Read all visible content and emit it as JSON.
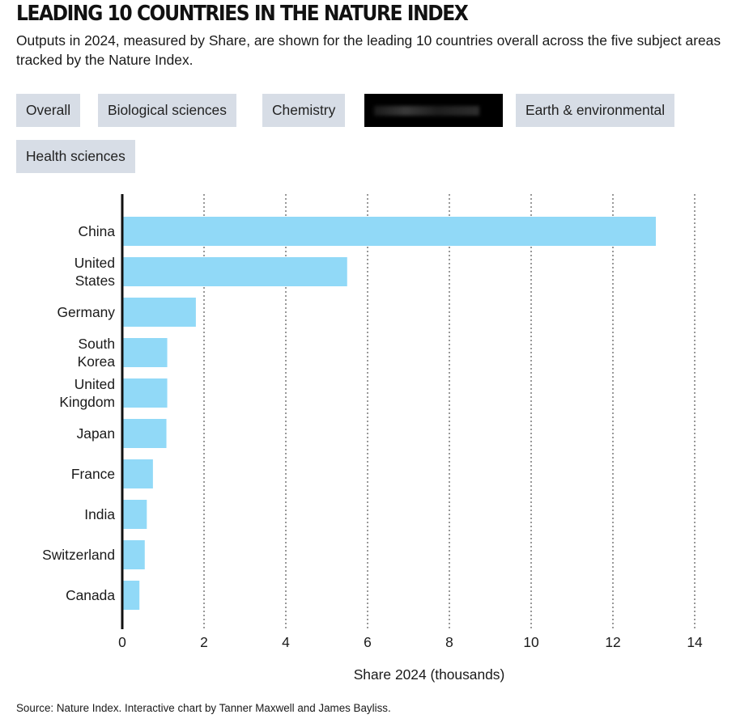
{
  "title": "LEADING 10 COUNTRIES IN THE NATURE INDEX",
  "subtitle": "Outputs in 2024, measured by Share, are shown for the leading 10 countries overall across the five subject areas tracked by the Nature Index.",
  "tabs": [
    {
      "label": "Overall",
      "active": false
    },
    {
      "label": "Biological sciences",
      "active": false
    },
    {
      "label": "Chemistry",
      "active": false
    },
    {
      "label": "",
      "active": true
    },
    {
      "label": "Earth & environmental",
      "active": false
    },
    {
      "label": "Health sciences",
      "active": false
    }
  ],
  "colors": {
    "bar": "#91d9f7",
    "axis": "#111111",
    "grid": "#333333",
    "tab_bg": "#d7dde6",
    "tab_active_bg": "#000000"
  },
  "chart_data": {
    "type": "bar",
    "orientation": "horizontal",
    "categories": [
      [
        "China"
      ],
      [
        "United",
        "States"
      ],
      [
        "Germany"
      ],
      [
        "South",
        "Korea"
      ],
      [
        "United",
        "Kingdom"
      ],
      [
        "Japan"
      ],
      [
        "France"
      ],
      [
        "India"
      ],
      [
        "Switzerland"
      ],
      [
        "Canada"
      ]
    ],
    "values": [
      13.05,
      5.5,
      1.8,
      1.1,
      1.1,
      1.08,
      0.75,
      0.6,
      0.55,
      0.42
    ],
    "xlabel": "Share 2024 (thousands)",
    "xlim": [
      0,
      14
    ],
    "xticks": [
      0,
      2,
      4,
      6,
      8,
      10,
      12,
      14
    ],
    "grid": "vertical-dotted"
  },
  "source": "Source: Nature Index. Interactive chart by Tanner Maxwell and James Bayliss."
}
